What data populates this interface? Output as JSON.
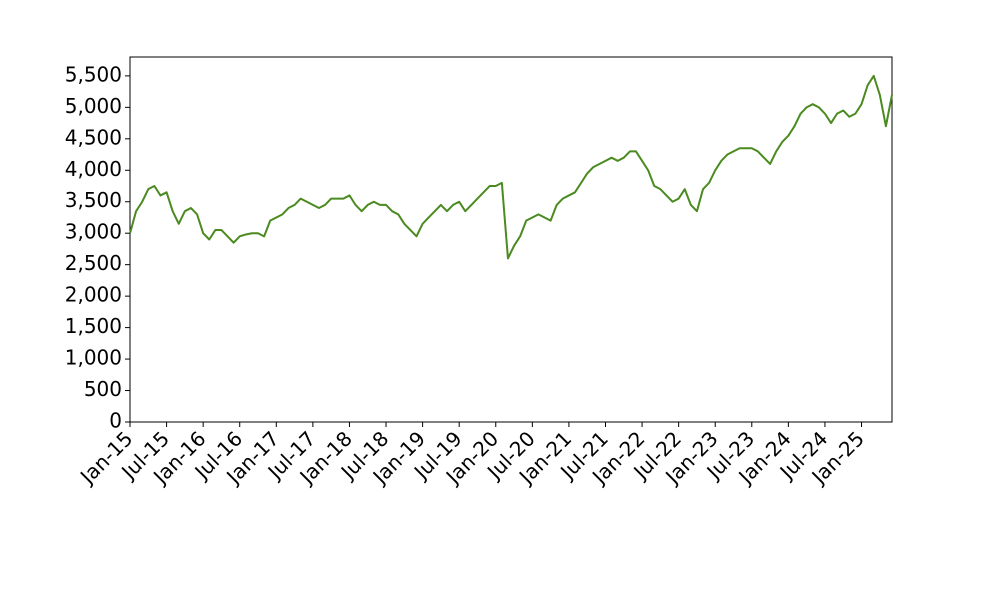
{
  "chart_data": {
    "type": "line",
    "x": [
      "2015-01",
      "2015-02",
      "2015-03",
      "2015-04",
      "2015-05",
      "2015-06",
      "2015-07",
      "2015-08",
      "2015-09",
      "2015-10",
      "2015-11",
      "2015-12",
      "2016-01",
      "2016-02",
      "2016-03",
      "2016-04",
      "2016-05",
      "2016-06",
      "2016-07",
      "2016-08",
      "2016-09",
      "2016-10",
      "2016-11",
      "2016-12",
      "2017-01",
      "2017-02",
      "2017-03",
      "2017-04",
      "2017-05",
      "2017-06",
      "2017-07",
      "2017-08",
      "2017-09",
      "2017-10",
      "2017-11",
      "2017-12",
      "2018-01",
      "2018-02",
      "2018-03",
      "2018-04",
      "2018-05",
      "2018-06",
      "2018-07",
      "2018-08",
      "2018-09",
      "2018-10",
      "2018-11",
      "2018-12",
      "2019-01",
      "2019-02",
      "2019-03",
      "2019-04",
      "2019-05",
      "2019-06",
      "2019-07",
      "2019-08",
      "2019-09",
      "2019-10",
      "2019-11",
      "2019-12",
      "2020-01",
      "2020-02",
      "2020-03",
      "2020-04",
      "2020-05",
      "2020-06",
      "2020-07",
      "2020-08",
      "2020-09",
      "2020-10",
      "2020-11",
      "2020-12",
      "2021-01",
      "2021-02",
      "2021-03",
      "2021-04",
      "2021-05",
      "2021-06",
      "2021-07",
      "2021-08",
      "2021-09",
      "2021-10",
      "2021-11",
      "2021-12",
      "2022-01",
      "2022-02",
      "2022-03",
      "2022-04",
      "2022-05",
      "2022-06",
      "2022-07",
      "2022-08",
      "2022-09",
      "2022-10",
      "2022-11",
      "2022-12",
      "2023-01",
      "2023-02",
      "2023-03",
      "2023-04",
      "2023-05",
      "2023-06",
      "2023-07",
      "2023-08",
      "2023-09",
      "2023-10",
      "2023-11",
      "2023-12",
      "2024-01",
      "2024-02",
      "2024-03",
      "2024-04",
      "2024-05",
      "2024-06",
      "2024-07",
      "2024-08",
      "2024-09",
      "2024-10",
      "2024-11",
      "2024-12",
      "2025-01",
      "2025-02",
      "2025-03",
      "2025-04",
      "2025-05",
      "2025-06"
    ],
    "series": [
      {
        "color": "#4a8a1f",
        "values": [
          3000,
          3350,
          3500,
          3700,
          3750,
          3600,
          3650,
          3350,
          3150,
          3350,
          3400,
          3300,
          3000,
          2900,
          3050,
          3050,
          2950,
          2850,
          2950,
          2980,
          3000,
          3000,
          2950,
          3200,
          3250,
          3300,
          3400,
          3450,
          3550,
          3500,
          3450,
          3400,
          3450,
          3550,
          3550,
          3550,
          3600,
          3450,
          3350,
          3450,
          3500,
          3450,
          3450,
          3350,
          3300,
          3150,
          3050,
          2950,
          3150,
          3250,
          3350,
          3450,
          3350,
          3450,
          3500,
          3350,
          3450,
          3550,
          3650,
          3750,
          3750,
          3800,
          2600,
          2800,
          2950,
          3200,
          3250,
          3300,
          3250,
          3200,
          3450,
          3550,
          3600,
          3650,
          3800,
          3950,
          4050,
          4100,
          4150,
          4200,
          4150,
          4200,
          4300,
          4300,
          4150,
          4000,
          3750,
          3700,
          3600,
          3500,
          3550,
          3700,
          3450,
          3350,
          3700,
          3800,
          4000,
          4150,
          4250,
          4300,
          4350,
          4350,
          4350,
          4300,
          4200,
          4100,
          4300,
          4450,
          4550,
          4700,
          4900,
          5000,
          5050,
          5000,
          4900,
          4750,
          4900,
          4950,
          4850,
          4900,
          5050,
          5350,
          5500,
          5200,
          4700,
          5200
        ]
      }
    ],
    "xlim": [
      "2015-01",
      "2025-06"
    ],
    "xticks": [
      {
        "value": "2015-01",
        "label": "Jan-15"
      },
      {
        "value": "2015-07",
        "label": "Jul-15"
      },
      {
        "value": "2016-01",
        "label": "Jan-16"
      },
      {
        "value": "2016-07",
        "label": "Jul-16"
      },
      {
        "value": "2017-01",
        "label": "Jan-17"
      },
      {
        "value": "2017-07",
        "label": "Jul-17"
      },
      {
        "value": "2018-01",
        "label": "Jan-18"
      },
      {
        "value": "2018-07",
        "label": "Jul-18"
      },
      {
        "value": "2019-01",
        "label": "Jan-19"
      },
      {
        "value": "2019-07",
        "label": "Jul-19"
      },
      {
        "value": "2020-01",
        "label": "Jan-20"
      },
      {
        "value": "2020-07",
        "label": "Jul-20"
      },
      {
        "value": "2021-01",
        "label": "Jan-21"
      },
      {
        "value": "2021-07",
        "label": "Jul-21"
      },
      {
        "value": "2022-01",
        "label": "Jan-22"
      },
      {
        "value": "2022-07",
        "label": "Jul-22"
      },
      {
        "value": "2023-01",
        "label": "Jan-23"
      },
      {
        "value": "2023-07",
        "label": "Jul-23"
      },
      {
        "value": "2024-01",
        "label": "Jan-24"
      },
      {
        "value": "2024-07",
        "label": "Jul-24"
      },
      {
        "value": "2025-01",
        "label": "Jan-25"
      }
    ],
    "ylim": [
      0,
      5800
    ],
    "yticks": [
      0,
      500,
      {
        "value": 1000,
        "label": "1,000"
      },
      {
        "value": 1500,
        "label": "1,500"
      },
      {
        "value": 2000,
        "label": "2,000"
      },
      {
        "value": 2500,
        "label": "2,500"
      },
      {
        "value": 3000,
        "label": "3,000"
      },
      {
        "value": 3500,
        "label": "3,500"
      },
      {
        "value": 4000,
        "label": "4,000"
      },
      {
        "value": 4500,
        "label": "4,500"
      },
      {
        "value": 5000,
        "label": "5,000"
      },
      {
        "value": 5500,
        "label": "5,500"
      }
    ]
  }
}
